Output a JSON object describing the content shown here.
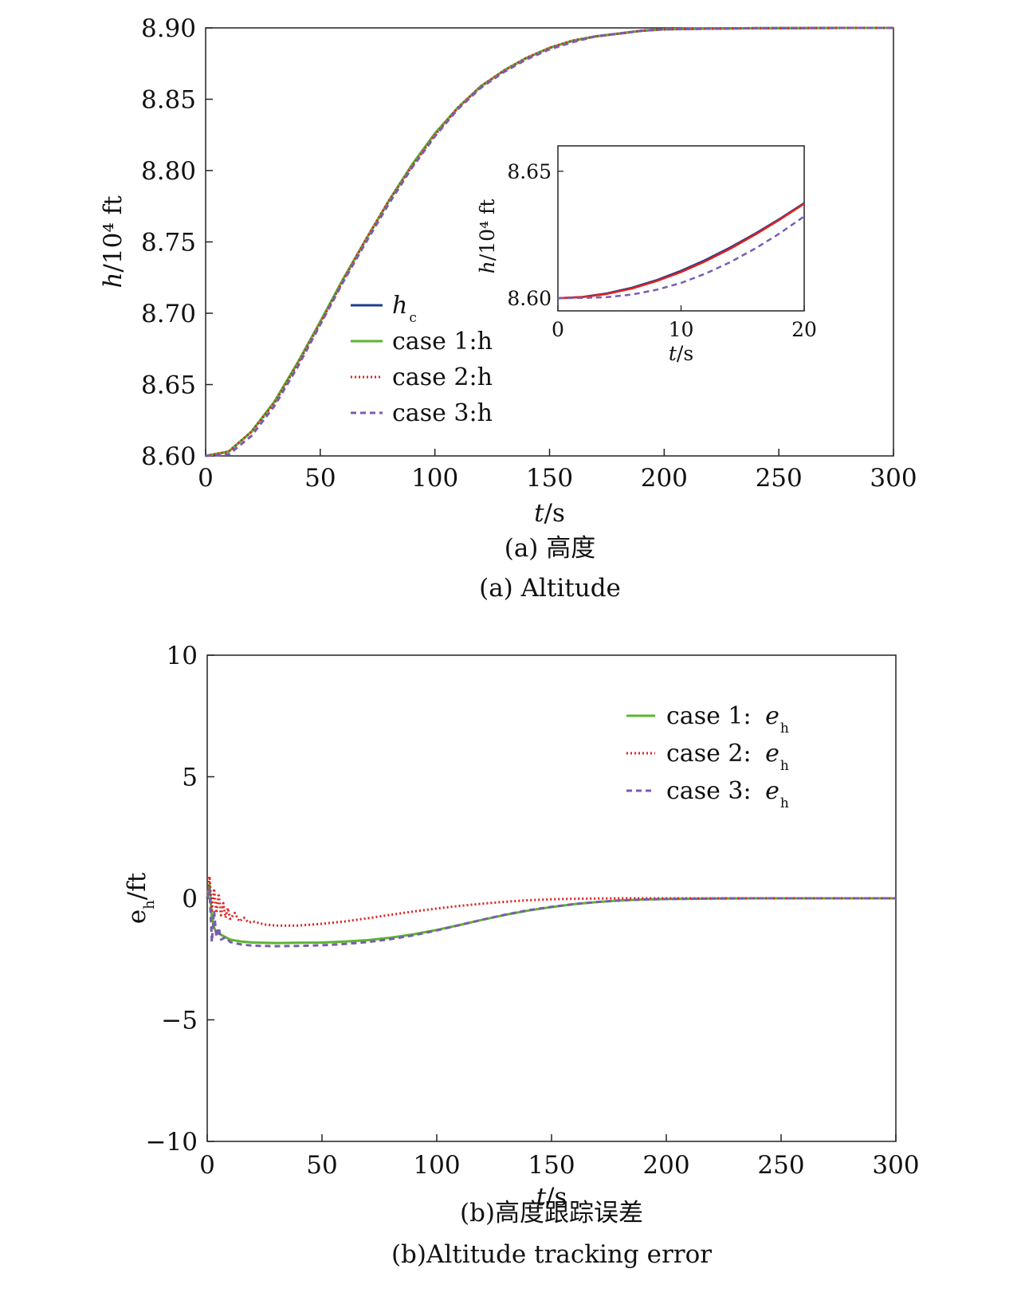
{
  "chart_data": [
    {
      "type": "line",
      "title": "",
      "captions": [
        "(a) 高度",
        "(a) Altitude"
      ],
      "xlabel": "t/s",
      "ylabel": "h/10⁴ ft",
      "xlim": [
        0,
        300
      ],
      "ylim": [
        8.6,
        8.9
      ],
      "xticks": [
        "0",
        "50",
        "100",
        "150",
        "200",
        "250",
        "300"
      ],
      "yticks": [
        "8.60",
        "8.65",
        "8.70",
        "8.75",
        "8.80",
        "8.85",
        "8.90"
      ],
      "legend_position": "center-left",
      "grid": false,
      "series": [
        {
          "name": "h",
          "name_sub": "c",
          "color": "#1f3f8f",
          "style": "solid",
          "x": [
            0,
            10,
            20,
            30,
            40,
            50,
            60,
            70,
            80,
            90,
            100,
            110,
            120,
            130,
            140,
            150,
            160,
            170,
            180,
            190,
            200,
            220,
            240,
            260,
            280,
            300
          ],
          "y": [
            8.6,
            8.603,
            8.617,
            8.638,
            8.665,
            8.694,
            8.724,
            8.752,
            8.779,
            8.804,
            8.826,
            8.844,
            8.859,
            8.87,
            8.879,
            8.886,
            8.891,
            8.894,
            8.896,
            8.898,
            8.899,
            8.8995,
            8.8998,
            8.8999,
            8.9,
            8.9
          ]
        },
        {
          "name": "case 1:h",
          "color": "#5ab52e",
          "style": "solid",
          "x": [
            0,
            10,
            20,
            30,
            40,
            50,
            60,
            70,
            80,
            90,
            100,
            110,
            120,
            130,
            140,
            150,
            160,
            170,
            180,
            190,
            200,
            220,
            240,
            260,
            280,
            300
          ],
          "y": [
            8.6,
            8.603,
            8.617,
            8.638,
            8.665,
            8.694,
            8.724,
            8.752,
            8.779,
            8.804,
            8.826,
            8.844,
            8.859,
            8.87,
            8.879,
            8.886,
            8.891,
            8.894,
            8.896,
            8.898,
            8.899,
            8.8995,
            8.8998,
            8.8999,
            8.9,
            8.9
          ]
        },
        {
          "name": "case 2:h",
          "color": "#e01f1f",
          "style": "dotted",
          "x": [
            0,
            10,
            20,
            30,
            40,
            50,
            60,
            70,
            80,
            90,
            100,
            110,
            120,
            130,
            140,
            150,
            160,
            170,
            180,
            190,
            200,
            220,
            240,
            260,
            280,
            300
          ],
          "y": [
            8.6,
            8.603,
            8.617,
            8.637,
            8.664,
            8.693,
            8.723,
            8.752,
            8.779,
            8.803,
            8.825,
            8.844,
            8.859,
            8.87,
            8.879,
            8.886,
            8.891,
            8.894,
            8.896,
            8.898,
            8.899,
            8.8995,
            8.8998,
            8.8999,
            8.9,
            8.9
          ]
        },
        {
          "name": "case 3:h",
          "color": "#7b5cb0",
          "style": "dashed",
          "x": [
            0,
            10,
            20,
            30,
            40,
            50,
            60,
            70,
            80,
            90,
            100,
            110,
            120,
            130,
            140,
            150,
            160,
            170,
            180,
            190,
            200,
            220,
            240,
            260,
            280,
            300
          ],
          "y": [
            8.6,
            8.601,
            8.614,
            8.635,
            8.662,
            8.692,
            8.722,
            8.75,
            8.777,
            8.802,
            8.824,
            8.843,
            8.858,
            8.869,
            8.878,
            8.885,
            8.89,
            8.894,
            8.896,
            8.898,
            8.899,
            8.8995,
            8.8998,
            8.8999,
            8.9,
            8.9
          ]
        }
      ],
      "inset": {
        "xlabel": "t/s",
        "ylabel": "h/10⁴ ft",
        "xlim": [
          0,
          20
        ],
        "ylim": [
          8.595,
          8.66
        ],
        "xticks": [
          "0",
          "10",
          "20"
        ],
        "yticks": [
          "8.60",
          "8.65"
        ],
        "series": [
          {
            "color": "#1f3f8f",
            "style": "solid",
            "x": [
              0,
              2,
              4,
              6,
              8,
              10,
              12,
              14,
              16,
              18,
              20
            ],
            "y": [
              8.6,
              8.6005,
              8.6019,
              8.6041,
              8.6071,
              8.6108,
              8.6151,
              8.62,
              8.6254,
              8.6312,
              8.6375
            ]
          },
          {
            "color": "#e01f1f",
            "style": "solid",
            "x": [
              0,
              2,
              4,
              6,
              8,
              10,
              12,
              14,
              16,
              18,
              20
            ],
            "y": [
              8.6,
              8.6004,
              8.6017,
              8.6038,
              8.6067,
              8.6103,
              8.6146,
              8.6195,
              8.625,
              8.6309,
              8.6372
            ]
          },
          {
            "color": "#7b5cb0",
            "style": "dashed",
            "x": [
              0,
              2,
              4,
              6,
              8,
              10,
              12,
              14,
              16,
              18,
              20
            ],
            "y": [
              8.6,
              8.6001,
              8.6004,
              8.6014,
              8.6033,
              8.606,
              8.6097,
              8.6142,
              8.6195,
              8.6255,
              8.6322
            ]
          }
        ]
      }
    },
    {
      "type": "line",
      "title": "",
      "captions": [
        "(b)高度跟踪误差",
        "(b)Altitude tracking error"
      ],
      "xlabel": "t/s",
      "ylabel": "e",
      "ylabel_sub": "h",
      "ylabel_suffix": "/ft",
      "xlim": [
        0,
        300
      ],
      "ylim": [
        -10,
        10
      ],
      "xticks": [
        "0",
        "50",
        "100",
        "150",
        "200",
        "250",
        "300"
      ],
      "yticks": [
        "−10",
        "−5",
        "0",
        "5",
        "10"
      ],
      "legend_position": "top-right",
      "grid": false,
      "series": [
        {
          "name": "case 1: ",
          "name_italic": "e",
          "name_sub": "h",
          "color": "#5ab52e",
          "style": "solid",
          "x": [
            0,
            1,
            2,
            3,
            4,
            6,
            8,
            10,
            15,
            20,
            30,
            40,
            50,
            60,
            70,
            80,
            90,
            100,
            110,
            120,
            130,
            140,
            150,
            160,
            170,
            180,
            190,
            200,
            220,
            240,
            260,
            280,
            300
          ],
          "y": [
            0,
            0.6,
            -0.8,
            -1.2,
            -1.4,
            -1.5,
            -1.6,
            -1.7,
            -1.78,
            -1.82,
            -1.84,
            -1.83,
            -1.82,
            -1.78,
            -1.72,
            -1.62,
            -1.48,
            -1.3,
            -1.1,
            -0.88,
            -0.68,
            -0.5,
            -0.36,
            -0.24,
            -0.15,
            -0.09,
            -0.05,
            -0.03,
            -0.01,
            0,
            0,
            0,
            0
          ]
        },
        {
          "name": "case 2: ",
          "name_italic": "e",
          "name_sub": "h",
          "color": "#e01f1f",
          "style": "dotted",
          "x": [
            0,
            1,
            2,
            3,
            4,
            5,
            6,
            7,
            8,
            9,
            10,
            12,
            14,
            16,
            18,
            20,
            25,
            30,
            40,
            50,
            60,
            70,
            80,
            90,
            100,
            110,
            120,
            130,
            140,
            150,
            160,
            170,
            180,
            190,
            200,
            220,
            240,
            260,
            280,
            300
          ],
          "y": [
            0,
            0.9,
            -0.5,
            0.4,
            -0.6,
            0.2,
            -0.7,
            -0.2,
            -0.8,
            -0.4,
            -0.85,
            -0.6,
            -0.95,
            -0.8,
            -1.0,
            -0.95,
            -1.08,
            -1.12,
            -1.12,
            -1.05,
            -0.95,
            -0.82,
            -0.68,
            -0.54,
            -0.42,
            -0.31,
            -0.22,
            -0.14,
            -0.08,
            -0.04,
            -0.02,
            -0.01,
            0,
            0,
            0,
            0,
            0,
            0,
            0,
            0
          ]
        },
        {
          "name": "case 3: ",
          "name_italic": "e",
          "name_sub": "h",
          "color": "#7b5cb0",
          "style": "dashed",
          "x": [
            0,
            1,
            2,
            3,
            4,
            5,
            6,
            8,
            10,
            15,
            20,
            30,
            40,
            50,
            60,
            70,
            80,
            90,
            100,
            110,
            120,
            130,
            140,
            150,
            160,
            170,
            180,
            190,
            200,
            220,
            240,
            260,
            280,
            300
          ],
          "y": [
            0,
            0.4,
            -1.8,
            -0.5,
            -1.6,
            -1.2,
            -1.7,
            -1.6,
            -1.8,
            -1.9,
            -1.95,
            -1.97,
            -1.96,
            -1.93,
            -1.88,
            -1.8,
            -1.68,
            -1.52,
            -1.32,
            -1.1,
            -0.88,
            -0.67,
            -0.49,
            -0.35,
            -0.24,
            -0.15,
            -0.09,
            -0.05,
            -0.03,
            -0.01,
            0,
            0,
            0,
            0
          ]
        }
      ]
    }
  ]
}
